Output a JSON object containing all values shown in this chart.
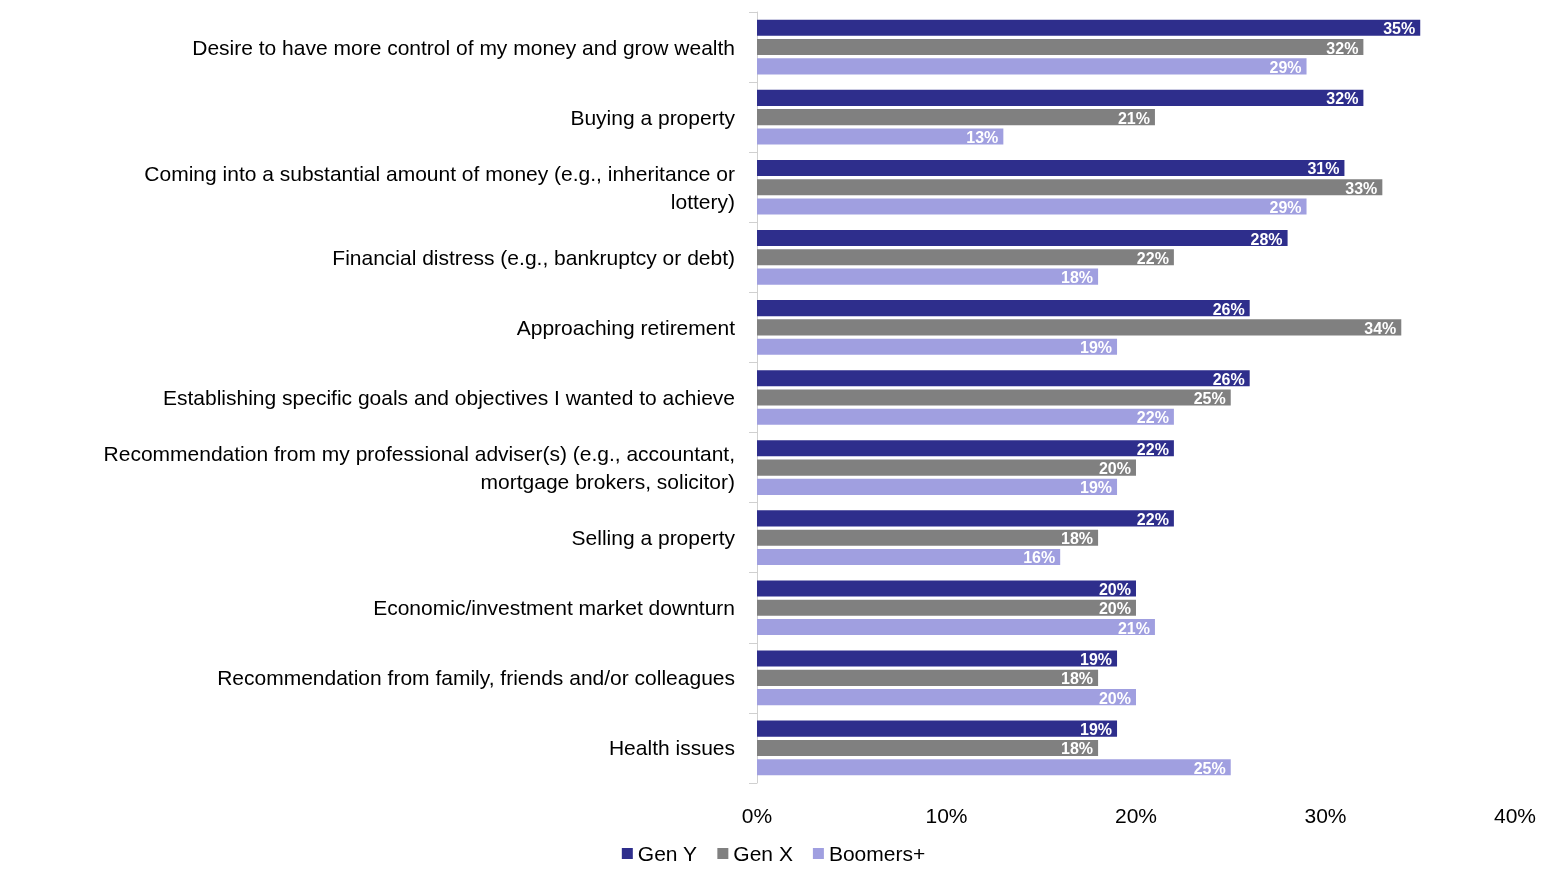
{
  "chart_data": {
    "type": "bar",
    "orientation": "horizontal",
    "categories": [
      "Desire to have more control of my money and grow wealth",
      "Buying a property",
      "Coming into a substantial amount of money (e.g., inheritance or lottery)",
      "Financial distress (e.g., bankruptcy or debt)",
      "Approaching retirement",
      "Establishing specific goals and objectives I wanted to achieve",
      "Recommendation from my professional adviser(s) (e.g., accountant, mortgage brokers, solicitor)",
      "Selling a property",
      "Economic/investment market downturn",
      "Recommendation from family, friends and/or colleagues",
      "Health issues"
    ],
    "series": [
      {
        "name": "Gen Y",
        "color": "#2e2e8c",
        "values": [
          35,
          32,
          31,
          28,
          26,
          26,
          22,
          22,
          20,
          19,
          19
        ],
        "value_labels": [
          "35%",
          "32%",
          "31%",
          "28%",
          "26%",
          "26%",
          "22%",
          "22%",
          "20%",
          "19%",
          "19%"
        ]
      },
      {
        "name": "Gen X",
        "color": "#808080",
        "values": [
          32,
          21,
          33,
          22,
          34,
          25,
          20,
          18,
          20,
          18,
          18
        ],
        "value_labels": [
          "32%",
          "21%",
          "33%",
          "22%",
          "34%",
          "25%",
          "20%",
          "18%",
          "20%",
          "18%",
          "18%"
        ]
      },
      {
        "name": "Boomers+",
        "color": "#a09fe0",
        "values": [
          29,
          13,
          29,
          18,
          19,
          22,
          19,
          16,
          21,
          20,
          25
        ],
        "value_labels": [
          "29%",
          "13%",
          "29%",
          "18%",
          "19%",
          "22%",
          "19%",
          "16%",
          "21%",
          "20%",
          "25%"
        ]
      }
    ],
    "xlim": [
      0,
      40
    ],
    "xticks": [
      {
        "value": 0,
        "label": "0%"
      },
      {
        "value": 10,
        "label": "10%"
      },
      {
        "value": 20,
        "label": "20%"
      },
      {
        "value": 30,
        "label": "30%"
      },
      {
        "value": 40,
        "label": "40%"
      }
    ],
    "grid": false,
    "legend": "bottom"
  }
}
